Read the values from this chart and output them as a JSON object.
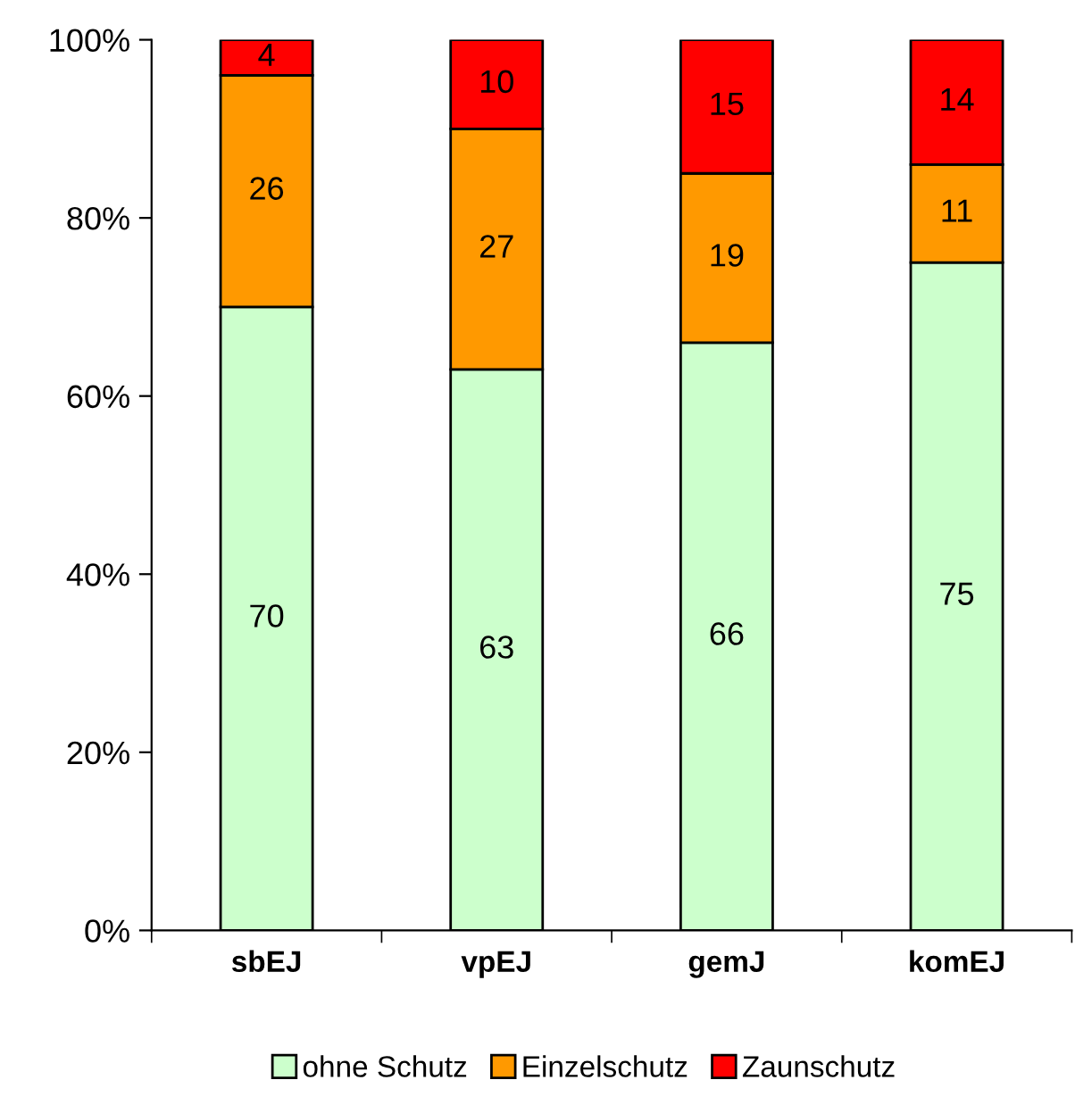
{
  "chart_data": {
    "type": "bar",
    "stacked": true,
    "categories": [
      "sbEJ",
      "vpEJ",
      "gemJ",
      "komEJ"
    ],
    "series": [
      {
        "name": "ohne Schutz",
        "color": "#ccffcc",
        "values": [
          70,
          63,
          66,
          75
        ]
      },
      {
        "name": "Einzelschutz",
        "color": "#ff9900",
        "values": [
          26,
          27,
          19,
          11
        ]
      },
      {
        "name": "Zaunschutz",
        "color": "#ff0000",
        "values": [
          4,
          10,
          15,
          14
        ]
      }
    ],
    "ylim": [
      0,
      100
    ],
    "yticks": [
      {
        "value": 0,
        "label": "0%"
      },
      {
        "value": 20,
        "label": "20%"
      },
      {
        "value": 40,
        "label": "40%"
      },
      {
        "value": 60,
        "label": "60%"
      },
      {
        "value": 80,
        "label": "80%"
      },
      {
        "value": 100,
        "label": "100%"
      }
    ],
    "data_labels": true,
    "legend": "bottom",
    "grid": false
  }
}
